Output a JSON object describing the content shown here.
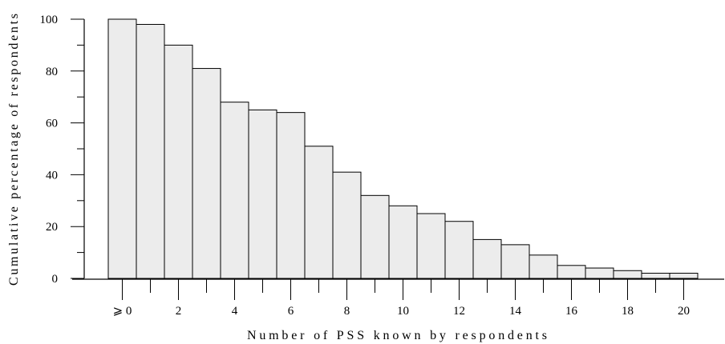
{
  "chart_data": {
    "type": "bar",
    "title": "",
    "xlabel": "Number of PSS known by respondents",
    "ylabel": "Cumulative percentage of respondents",
    "categories": [
      "0",
      "1",
      "2",
      "3",
      "4",
      "5",
      "6",
      "7",
      "8",
      "9",
      "10",
      "11",
      "12",
      "13",
      "14",
      "15",
      "16",
      "17",
      "18",
      "19",
      "20"
    ],
    "values": [
      100,
      98,
      90,
      81,
      68,
      65,
      64,
      51,
      41,
      32,
      28,
      25,
      22,
      15,
      13,
      9,
      5,
      4,
      3,
      2,
      2
    ],
    "x_tick_labels": [
      "⩾ 0",
      "2",
      "4",
      "6",
      "8",
      "10",
      "12",
      "14",
      "16",
      "18",
      "20"
    ],
    "x_tick_values": [
      0,
      2,
      4,
      6,
      8,
      10,
      12,
      14,
      16,
      18,
      20
    ],
    "y_tick_labels": [
      "0",
      "20",
      "40",
      "60",
      "80",
      "100"
    ],
    "y_tick_values": [
      0,
      20,
      40,
      60,
      80,
      100
    ],
    "y_minor_ticks": [
      10,
      30,
      50,
      70,
      90
    ],
    "x_minor_ticks": [
      1,
      3,
      5,
      7,
      9,
      11,
      13,
      15,
      17,
      19
    ],
    "ylim": [
      0,
      100
    ],
    "xlim": [
      -0.5,
      20.5
    ],
    "grid": false,
    "colors": {
      "bar_fill": "#ececec",
      "bar_stroke": "#000000"
    }
  }
}
